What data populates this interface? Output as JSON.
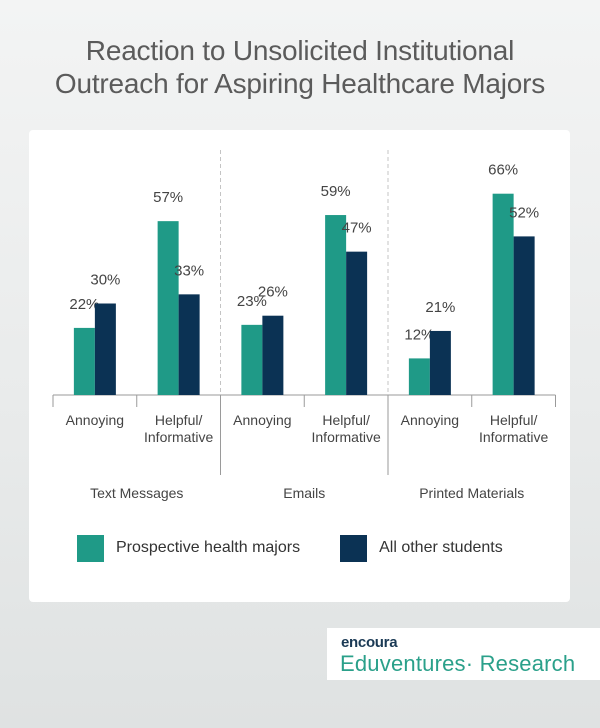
{
  "title": {
    "line1": "Reaction to Unsolicited Institutional",
    "line2": "Outreach for Aspiring Healthcare Majors"
  },
  "colors": {
    "health": "#1f9a87",
    "other": "#0b3254"
  },
  "chart_data": {
    "type": "bar",
    "title": "Reaction to Unsolicited Institutional Outreach for Aspiring Healthcare Majors",
    "groups": [
      {
        "label": "Text Messages",
        "categories": [
          "Annoying",
          "Helpful/ Informative"
        ]
      },
      {
        "label": "Emails",
        "categories": [
          "Annoying",
          "Helpful/ Informative"
        ]
      },
      {
        "label": "Printed Materials",
        "categories": [
          "Annoying",
          "Helpful/ Informative"
        ]
      }
    ],
    "categories": [
      "Annoying",
      "Helpful/ Informative",
      "Annoying",
      "Helpful/ Informative",
      "Annoying",
      "Helpful/ Informative"
    ],
    "series": [
      {
        "name": "Prospective health majors",
        "values": [
          22,
          57,
          23,
          59,
          12,
          66
        ],
        "color": "#1f9a87"
      },
      {
        "name": "All other students",
        "values": [
          30,
          33,
          26,
          47,
          21,
          52
        ],
        "color": "#0b3254"
      }
    ],
    "value_suffix": "%",
    "ylim": [
      0,
      100
    ],
    "grid": false,
    "legend_position": "bottom",
    "xlabel": "",
    "ylabel": ""
  },
  "legend": [
    {
      "label": "Prospective health majors",
      "color": "#1f9a87"
    },
    {
      "label": "All other students",
      "color": "#0b3254"
    }
  ],
  "logo": {
    "brand": "encoura",
    "product": "Eduventures· Research"
  }
}
